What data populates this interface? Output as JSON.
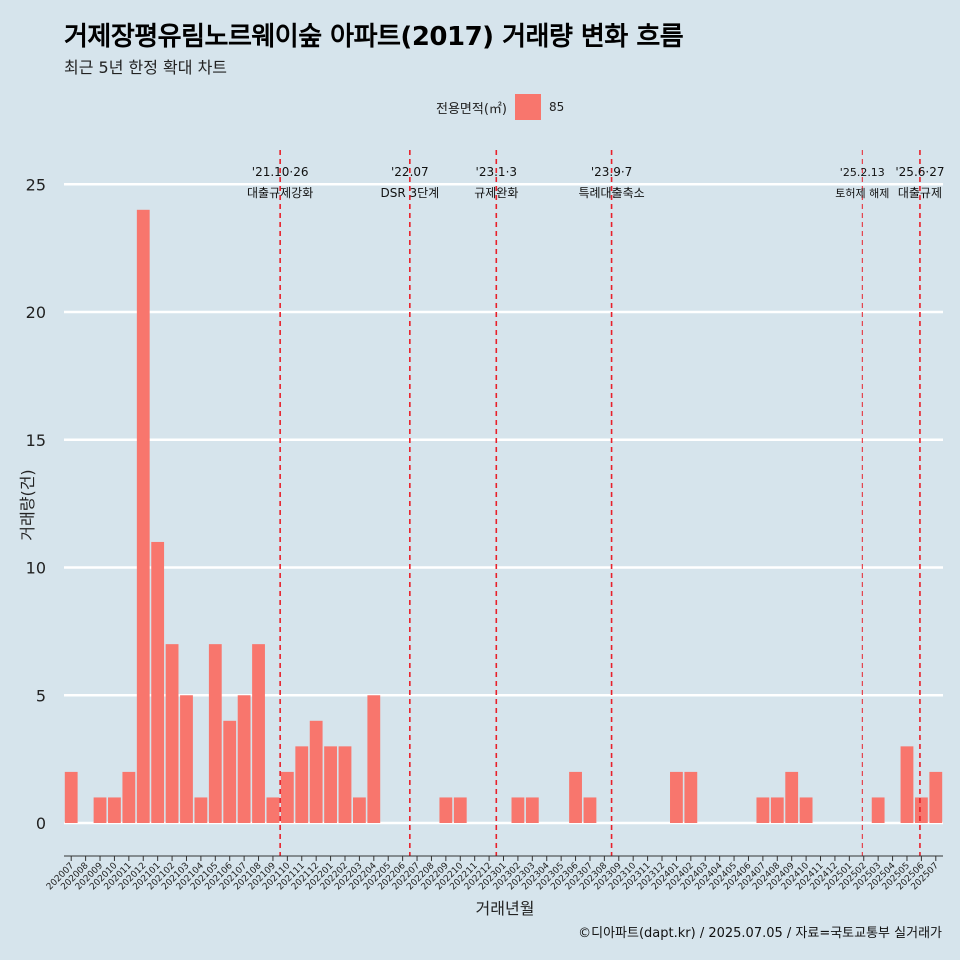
{
  "header": {
    "title": "거제장평유림노르웨이숲 아파트(2017) 거래량 변화 흐름",
    "subtitle": "최근 5년 한정 확대 차트"
  },
  "legend": {
    "title": "전용면적(㎡)",
    "key": "85",
    "color": "#f8766d"
  },
  "caption": "©디아파트(dapt.kr) / 2025.07.05 / 자료=국토교통부 실거래가",
  "chart_data": {
    "type": "bar",
    "xlabel": "거래년월",
    "ylabel": "거래량(건)",
    "ylim": [
      0,
      26
    ],
    "yticks": [
      0,
      5,
      10,
      15,
      20,
      25
    ],
    "grid": true,
    "legend_position": "top",
    "bar_color": "#f8766d",
    "categories": [
      "202007",
      "202008",
      "202009",
      "202010",
      "202011",
      "202012",
      "202101",
      "202102",
      "202103",
      "202104",
      "202105",
      "202106",
      "202107",
      "202108",
      "202109",
      "202110",
      "202111",
      "202112",
      "202201",
      "202202",
      "202203",
      "202204",
      "202205",
      "202206",
      "202207",
      "202208",
      "202209",
      "202210",
      "202211",
      "202212",
      "202301",
      "202302",
      "202303",
      "202304",
      "202305",
      "202306",
      "202307",
      "202308",
      "202309",
      "202310",
      "202311",
      "202312",
      "202401",
      "202402",
      "202403",
      "202404",
      "202405",
      "202406",
      "202407",
      "202408",
      "202409",
      "202410",
      "202411",
      "202412",
      "202501",
      "202502",
      "202503",
      "202504",
      "202505",
      "202506",
      "202507"
    ],
    "series": [
      {
        "name": "85",
        "values": [
          2,
          0,
          1,
          1,
          2,
          24,
          11,
          7,
          5,
          1,
          7,
          4,
          5,
          7,
          1,
          2,
          3,
          4,
          3,
          3,
          1,
          5,
          0,
          0,
          0,
          0,
          1,
          1,
          0,
          0,
          0,
          1,
          1,
          0,
          0,
          2,
          1,
          0,
          0,
          0,
          0,
          0,
          2,
          2,
          0,
          0,
          0,
          0,
          1,
          1,
          2,
          1,
          0,
          0,
          0,
          0,
          1,
          0,
          3,
          1,
          2
        ]
      }
    ],
    "annotations": [
      {
        "x": 15.0,
        "date": "'21.10·26",
        "label": "대출규제강화",
        "style": "bold"
      },
      {
        "x": 24.0,
        "date": "'22.07",
        "label": "DSR 3단계",
        "style": "bold"
      },
      {
        "x": 30.0,
        "date": "'23.1·3",
        "label": "규제완화",
        "style": "bold"
      },
      {
        "x": 38.0,
        "date": "'23.9·7",
        "label": "특례대출축소",
        "style": "bold"
      },
      {
        "x": 55.4,
        "date": "'25.2.13",
        "label": "토허제 해제",
        "style": "thin"
      },
      {
        "x": 59.4,
        "date": "'25.6·27",
        "label": "대출규제",
        "style": "bold"
      }
    ]
  }
}
